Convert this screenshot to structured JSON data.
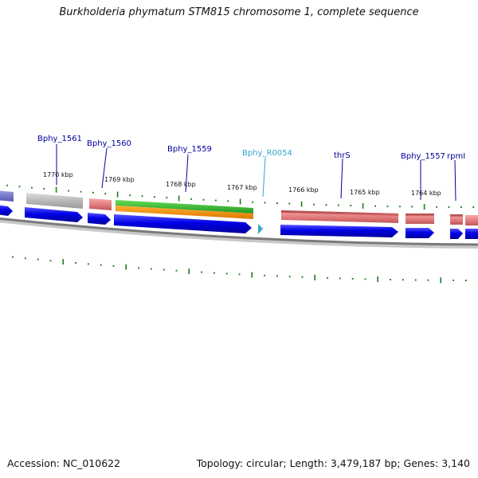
{
  "title": "Burkholderia phymatum STM815 chromosome 1, complete sequence",
  "footer": {
    "accession": "Accession: NC_010622",
    "info": "Topology: circular; Length: 3,479,187 bp; Genes: 3,140"
  },
  "colors": {
    "cds_forward": "#0000e0",
    "gene_feature": "#e07878",
    "pseudo_feature": "#b0b0b0",
    "rna_feature": "#3aa6c8",
    "tick": "#1f7a1f",
    "label_gene": "#000099",
    "label_rna": "#33a6cc",
    "backbone": "#888888"
  },
  "scale_labels": [
    "1770 kbp",
    "1769 kbp",
    "1768 kbp",
    "1767 kbp",
    "1766 kbp",
    "1765 kbp",
    "1764 kbp"
  ],
  "gene_labels": [
    {
      "text": "Bphy_1561",
      "type": "gene"
    },
    {
      "text": "Bphy_1560",
      "type": "gene"
    },
    {
      "text": "Bphy_1559",
      "type": "gene"
    },
    {
      "text": "Bphy_R0054",
      "type": "rna"
    },
    {
      "text": "thrS",
      "type": "gene"
    },
    {
      "text": "Bphy_1557",
      "type": "gene"
    },
    {
      "text": "rpmI",
      "type": "gene"
    }
  ]
}
